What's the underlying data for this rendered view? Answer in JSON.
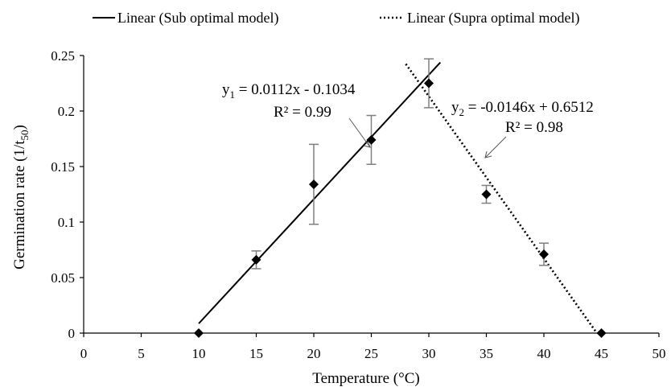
{
  "chart_data": {
    "type": "scatter",
    "xlabel": "Temperature (°C)",
    "ylabel": "Germination rate (1/t",
    "ylabel_sub": "50",
    "ylabel_end": ")",
    "xlim": [
      0,
      50
    ],
    "ylim": [
      0,
      0.25
    ],
    "xticks": [
      "0",
      "5",
      "10",
      "15",
      "20",
      "25",
      "30",
      "35",
      "40",
      "45",
      "50"
    ],
    "yticks": [
      "0",
      "0.05",
      "0.1",
      "0.15",
      "0.2",
      "0.25"
    ],
    "grid": false,
    "legend_position": "top",
    "points": [
      {
        "x": 10,
        "y": 0.0,
        "err": 0.0
      },
      {
        "x": 15,
        "y": 0.066,
        "err": 0.008
      },
      {
        "x": 20,
        "y": 0.134,
        "err": 0.036
      },
      {
        "x": 25,
        "y": 0.174,
        "err": 0.022
      },
      {
        "x": 30,
        "y": 0.225,
        "err": 0.022
      },
      {
        "x": 35,
        "y": 0.125,
        "err": 0.008
      },
      {
        "x": 40,
        "y": 0.071,
        "err": 0.01
      },
      {
        "x": 45,
        "y": 0.0,
        "err": 0.0
      }
    ],
    "series": [
      {
        "name": "Linear (Sub optimal model)",
        "style": "solid",
        "slope": 0.0112,
        "intercept": -0.1034,
        "x_range": [
          10,
          31
        ]
      },
      {
        "name": "Linear (Supra optimal model)",
        "style": "dotted",
        "slope": -0.0146,
        "intercept": 0.6512,
        "x_range": [
          28,
          44.6
        ]
      }
    ],
    "annotations": [
      {
        "eq_prefix": "y",
        "eq_sub": "1",
        "eq_rest": " = 0.0112x - 0.1034",
        "r2": "R² = 0.99"
      },
      {
        "eq_prefix": "y",
        "eq_sub": "2",
        "eq_rest": " = -0.0146x + 0.6512",
        "r2": "R² = 0.98"
      }
    ],
    "colors": {
      "line": "#000000",
      "marker": "#000000",
      "errorbar": "#7f7f7f"
    }
  }
}
